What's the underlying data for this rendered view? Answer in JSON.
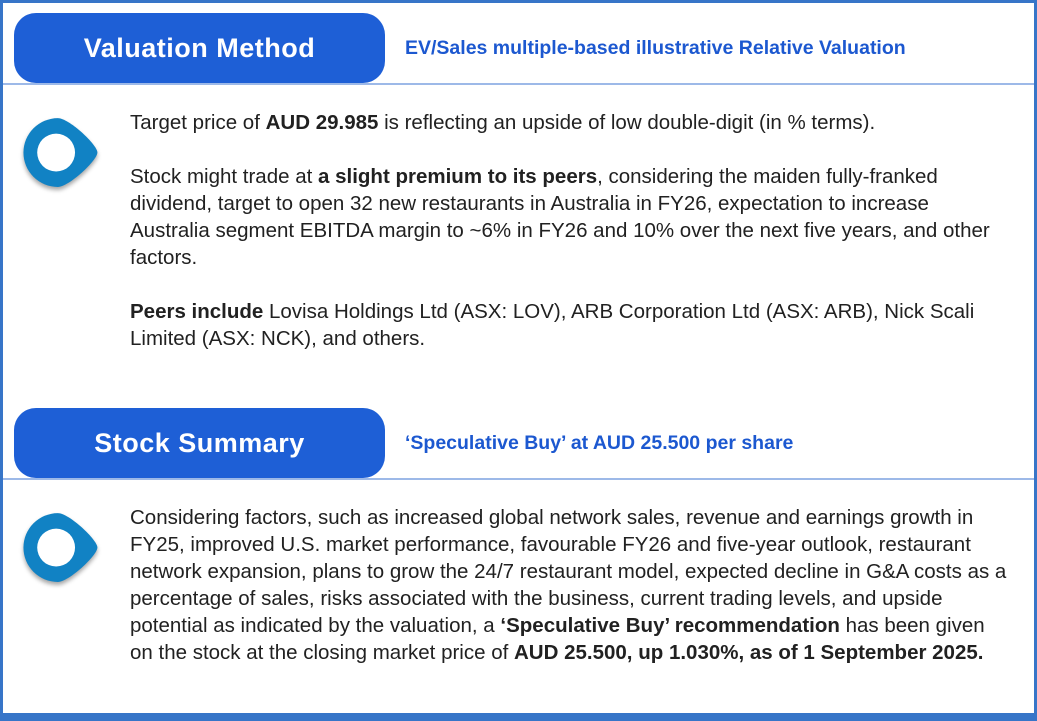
{
  "colors": {
    "header_blue": "#1E5FD6",
    "subtitle_blue": "#1C58D0",
    "icon_blue": "#1182C4",
    "frame_blue": "#3775C8",
    "separator_blue": "#9DB9E8",
    "body_text": "#212121"
  },
  "icons": {
    "bullet": "location-pin-pointer-right-icon"
  },
  "sections": [
    {
      "title": "Valuation Method",
      "subtitle": "EV/Sales multiple-based illustrative Relative Valuation",
      "paragraphs": [
        [
          {
            "text": "Target price of ",
            "bold": false
          },
          {
            "text": "AUD 29.985",
            "bold": true
          },
          {
            "text": " is reflecting an upside of low double-digit (in % terms).",
            "bold": false
          }
        ],
        [
          {
            "text": "Stock might trade at ",
            "bold": false
          },
          {
            "text": "a slight premium to its peers",
            "bold": true
          },
          {
            "text": ", considering the maiden fully-franked dividend, target to open 32 new restaurants in Australia in FY26, expectation to increase Australia segment EBITDA margin to ~6% in FY26 and 10% over the next five years, and other factors.",
            "bold": false
          }
        ],
        [
          {
            "text": "Peers include",
            "bold": true
          },
          {
            "text": " Lovisa Holdings Ltd (ASX: LOV), ARB Corporation Ltd (ASX: ARB), Nick Scali Limited (ASX: NCK), and others.",
            "bold": false
          }
        ]
      ]
    },
    {
      "title": "Stock Summary",
      "subtitle": "‘Speculative Buy’ at AUD 25.500  per share",
      "paragraphs": [
        [
          {
            "text": "Considering factors, such as increased global network sales, revenue and earnings growth in FY25, improved U.S. market performance, favourable FY26 and five-year outlook, restaurant network expansion, plans to grow the 24/7 restaurant model, expected decline in G&A costs as a percentage of sales, risks associated with the business, current trading levels, and upside potential as indicated by the valuation, a ",
            "bold": false
          },
          {
            "text": "‘Speculative Buy’ recommendation",
            "bold": true
          },
          {
            "text": " has been given on the stock at the closing market price of ",
            "bold": false
          },
          {
            "text": "AUD 25.500, up 1.030%, as of 1 September 2025.",
            "bold": true
          }
        ]
      ]
    }
  ]
}
